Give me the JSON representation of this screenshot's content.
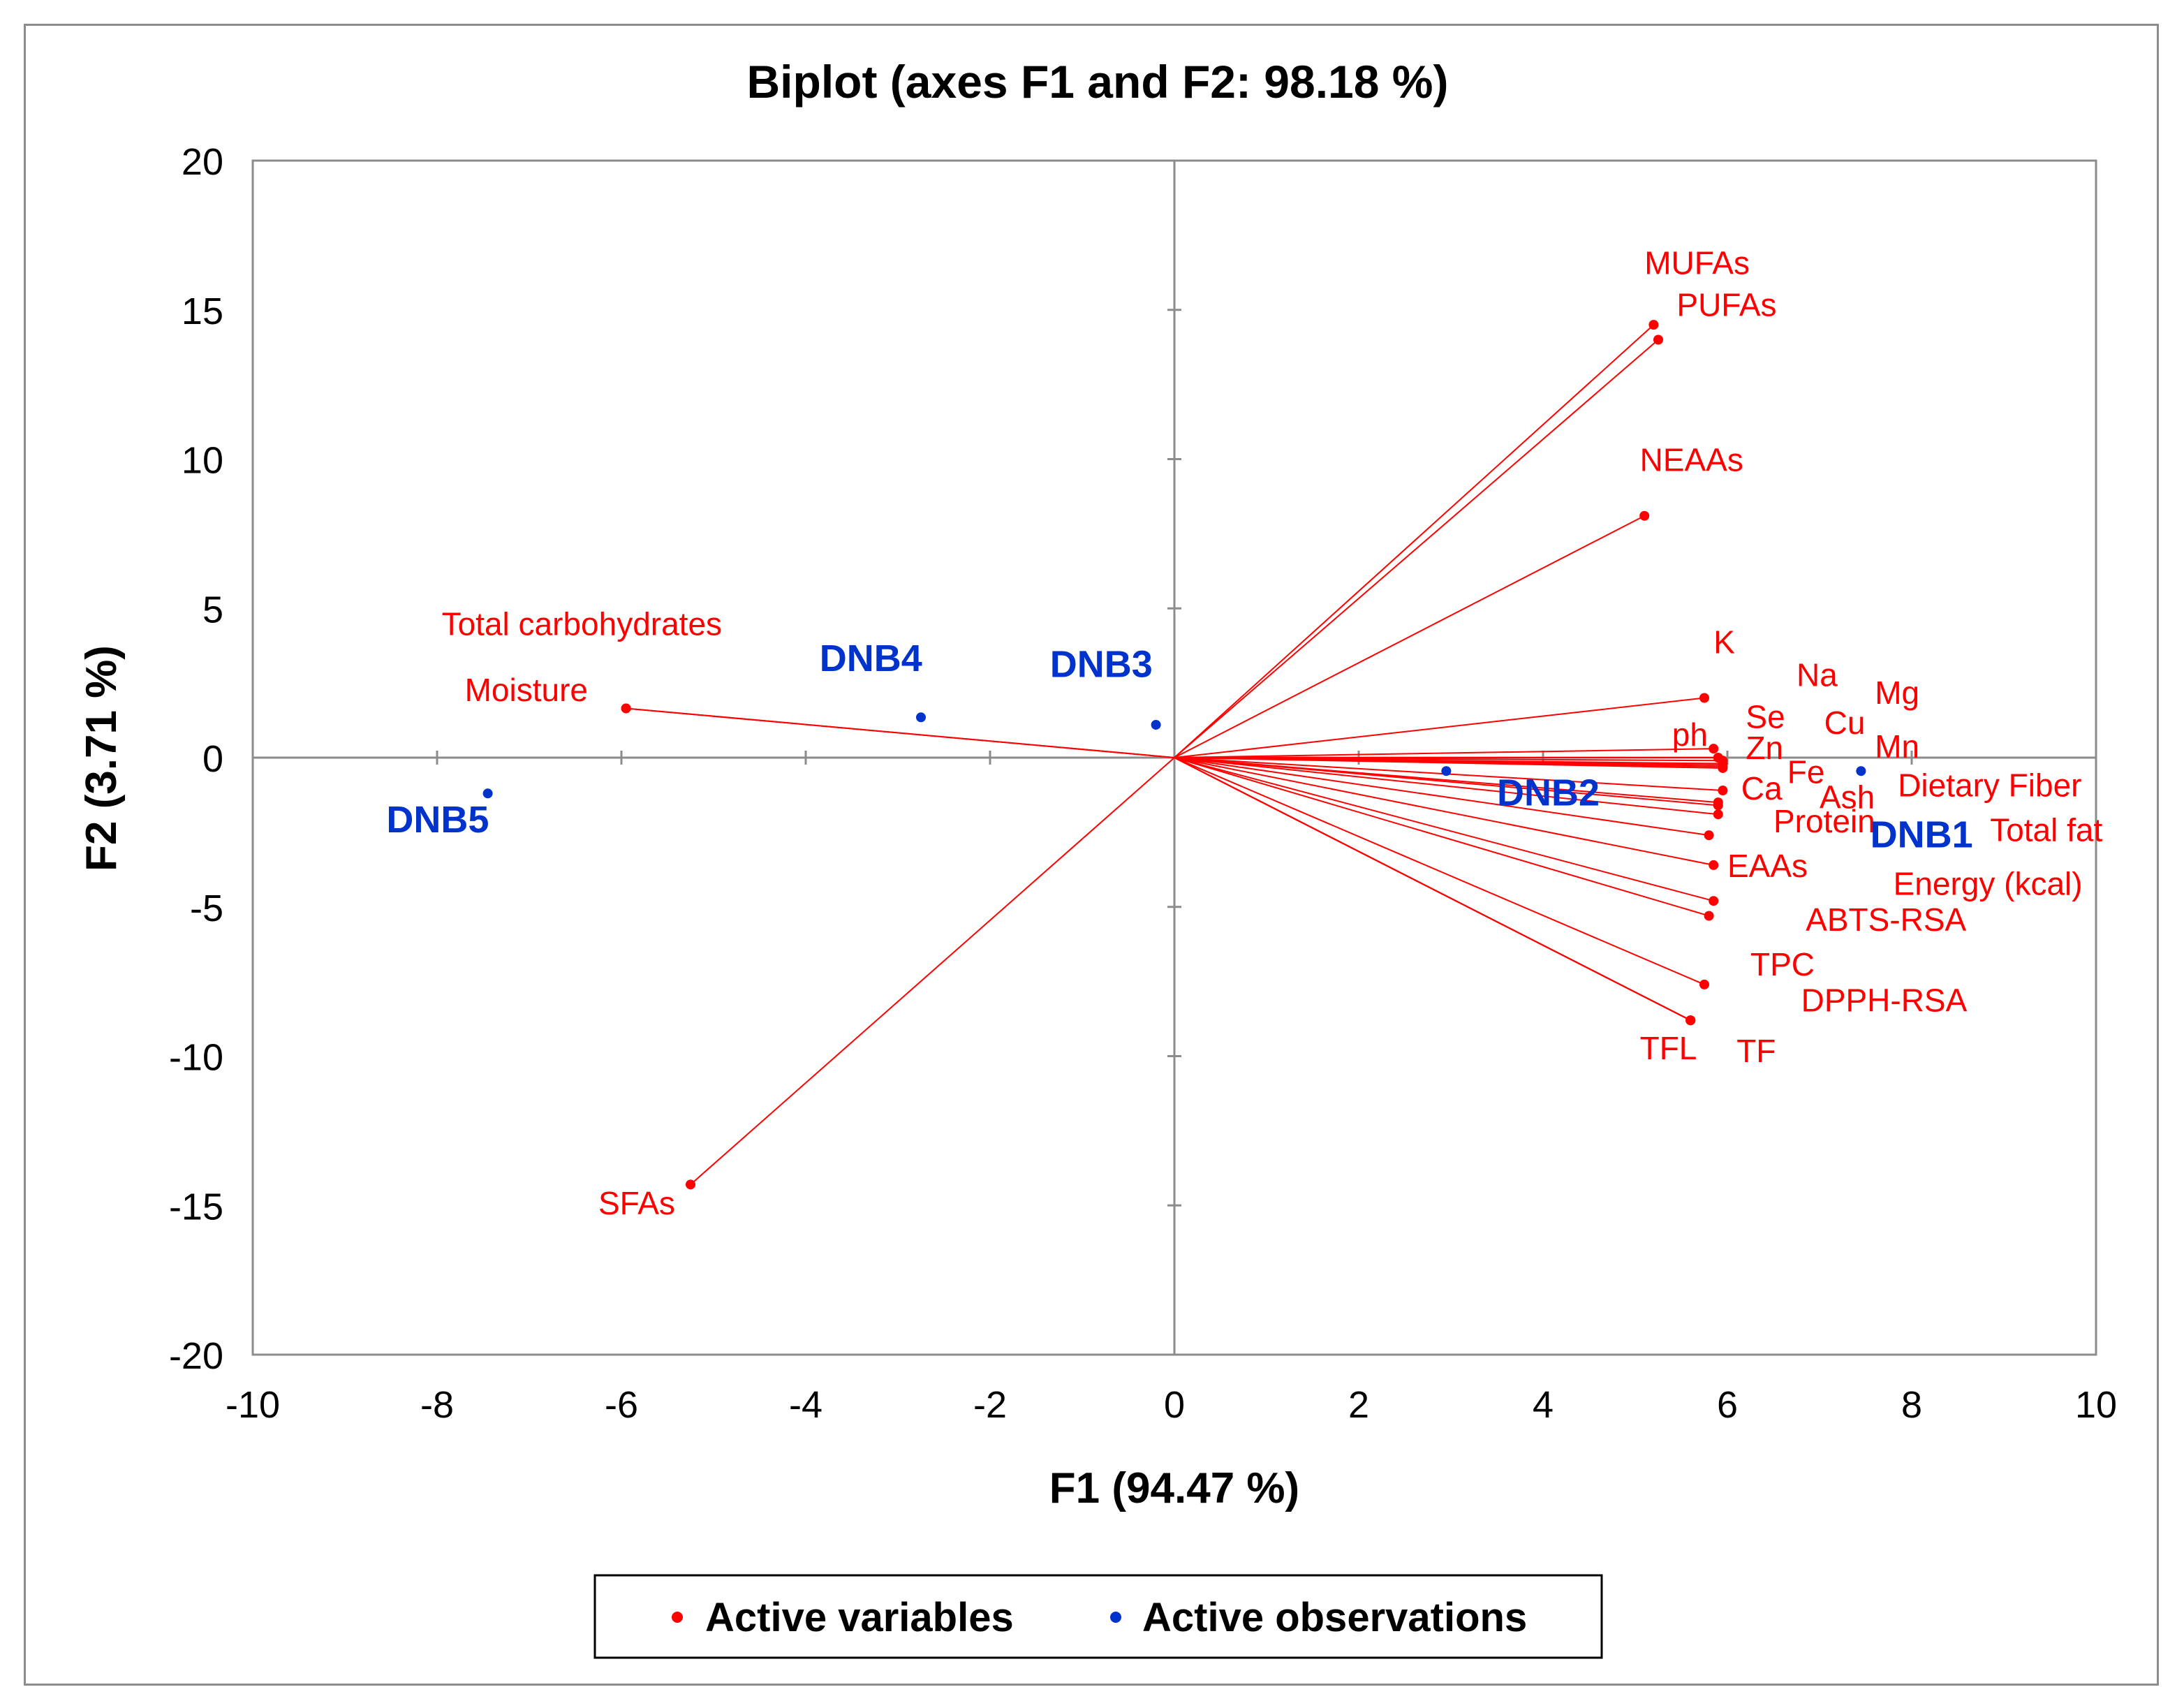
{
  "chart_data": {
    "type": "scatter",
    "title": "Biplot (axes F1 and F2: 98.18 %)",
    "xlabel": "F1 (94.47 %)",
    "ylabel": "F2 (3.71 %)",
    "xlim": [
      -10,
      10
    ],
    "ylim": [
      -20,
      20
    ],
    "xticks": [
      "-10",
      "-8",
      "-6",
      "-4",
      "-2",
      "0",
      "2",
      "4",
      "6",
      "8",
      "10"
    ],
    "yticks": [
      "-20",
      "-15",
      "-10",
      "-5",
      "0",
      "5",
      "10",
      "15",
      "20"
    ],
    "grid": false,
    "legend_position": "bottom",
    "series": [
      {
        "name": "Active variables",
        "color": "#ff0000",
        "type": "vectors",
        "points": [
          {
            "label": "MUFAs",
            "x": 5.2,
            "y": 14.5,
            "lx": 5.1,
            "ly": 16.2
          },
          {
            "label": "PUFAs",
            "x": 5.25,
            "y": 14.0,
            "lx": 5.45,
            "ly": 14.8
          },
          {
            "label": "NEAAs",
            "x": 5.1,
            "y": 8.1,
            "lx": 5.05,
            "ly": 9.6
          },
          {
            "label": "K",
            "x": 5.75,
            "y": 2.0,
            "lx": 5.85,
            "ly": 3.5
          },
          {
            "label": "Na",
            "x": 5.85,
            "y": 0.3,
            "lx": 6.75,
            "ly": 2.4
          },
          {
            "label": "Mg",
            "x": 5.9,
            "y": 0.0,
            "lx": 7.6,
            "ly": 1.8
          },
          {
            "label": "Se",
            "x": 5.95,
            "y": -0.1,
            "lx": 6.2,
            "ly": 1.0
          },
          {
            "label": "Cu",
            "x": 5.95,
            "y": -0.2,
            "lx": 7.05,
            "ly": 0.8
          },
          {
            "label": "ph",
            "x": 5.95,
            "y": -0.25,
            "lx": 5.4,
            "ly": 0.4
          },
          {
            "label": "Mn",
            "x": 5.95,
            "y": -0.3,
            "lx": 7.6,
            "ly": 0.0
          },
          {
            "label": "Zn",
            "x": 5.95,
            "y": -0.35,
            "lx": 6.2,
            "ly": -0.05
          },
          {
            "label": "Fe",
            "x": 5.95,
            "y": -1.1,
            "lx": 6.65,
            "ly": -0.85
          },
          {
            "label": "Dietary Fiber",
            "x": 5.9,
            "y": -1.5,
            "lx": 7.85,
            "ly": -1.3
          },
          {
            "label": "Ca",
            "x": 5.9,
            "y": -1.6,
            "lx": 6.15,
            "ly": -1.4
          },
          {
            "label": "Ash",
            "x": 5.9,
            "y": -1.9,
            "lx": 7.0,
            "ly": -1.7
          },
          {
            "label": "Protein",
            "x": 5.8,
            "y": -2.6,
            "lx": 6.5,
            "ly": -2.5
          },
          {
            "label": "Total fat",
            "x": 5.85,
            "y": -3.6,
            "lx": 8.85,
            "ly": -2.8
          },
          {
            "label": "EAAs",
            "x": 5.85,
            "y": -4.8,
            "lx": 6.0,
            "ly": -4.0
          },
          {
            "label": "Energy (kcal)",
            "x": 5.8,
            "y": -5.3,
            "lx": 7.8,
            "ly": -4.6
          },
          {
            "label": "ABTS-RSA",
            "x": 5.75,
            "y": -7.6,
            "lx": 6.85,
            "ly": -5.8
          },
          {
            "label": "TPC",
            "x": 5.6,
            "y": -8.8,
            "lx": 6.25,
            "ly": -7.3
          },
          {
            "label": "DPPH-RSA",
            "x": 5.6,
            "y": -8.8,
            "lx": 6.8,
            "ly": -8.5
          },
          {
            "label": "TFL",
            "x": 5.6,
            "y": -8.8,
            "lx": 5.05,
            "ly": -10.1
          },
          {
            "label": "TF",
            "x": 5.6,
            "y": -8.8,
            "lx": 6.1,
            "ly": -10.2
          },
          {
            "label": "Total carbohydrates",
            "x": -5.95,
            "y": 1.65,
            "lx": -7.95,
            "ly": 4.1
          },
          {
            "label": "Moisture",
            "x": -5.95,
            "y": 1.65,
            "lx": -7.7,
            "ly": 1.9
          },
          {
            "label": "SFAs",
            "x": -5.25,
            "y": -14.3,
            "lx": -6.25,
            "ly": -15.3
          }
        ]
      },
      {
        "name": "Active observations",
        "color": "#0033cc",
        "type": "points",
        "points": [
          {
            "label": "DNB1",
            "x": 7.45,
            "y": -0.45,
            "lx": 7.55,
            "ly": -3.0
          },
          {
            "label": "DNB2",
            "x": 2.95,
            "y": -0.45,
            "lx": 3.5,
            "ly": -1.6
          },
          {
            "label": "DNB3",
            "x": -0.2,
            "y": 1.1,
            "lx": -1.35,
            "ly": 2.7
          },
          {
            "label": "DNB4",
            "x": -2.75,
            "y": 1.35,
            "lx": -3.85,
            "ly": 2.9
          },
          {
            "label": "DNB5",
            "x": -7.45,
            "y": -1.2,
            "lx": -8.55,
            "ly": -2.5
          }
        ]
      }
    ]
  }
}
